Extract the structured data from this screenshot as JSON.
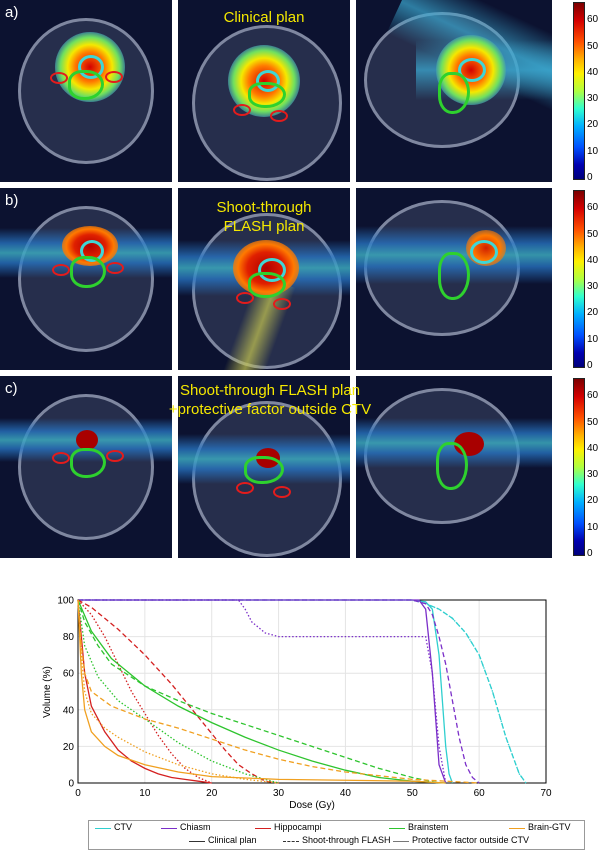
{
  "row_labels": [
    "a)",
    "b)",
    "c)"
  ],
  "panel_titles": {
    "a": "Clinical plan",
    "b_line1": "Shoot-through",
    "b_line2": "FLASH plan",
    "c_line1": "Shoot-through FLASH plan",
    "c_line2": "+protective factor outside CTV"
  },
  "colorbar_ticks": [
    "60",
    "50",
    "40",
    "30",
    "20",
    "10",
    "0"
  ],
  "colors": {
    "ctv": "#2fcfcf",
    "chiasm": "#7b2fc9",
    "hippocampi": "#d42020",
    "brainstem": "#2ec42e",
    "brain_gtv": "#f0a020",
    "dose_overlay_hot": "#cc0000",
    "dose_overlay_cold": "#1a1aa0"
  },
  "chart_data": {
    "type": "line",
    "xlabel": "Dose (Gy)",
    "ylabel": "Volume (%)",
    "xlim": [
      0,
      70
    ],
    "ylim": [
      0,
      100
    ],
    "xticks": [
      0,
      10,
      20,
      30,
      40,
      50,
      60,
      70
    ],
    "yticks": [
      0,
      20,
      40,
      60,
      80,
      100
    ],
    "grid": true,
    "legend_position": "bottom",
    "legend_structures": [
      "CTV",
      "Chiasm",
      "Hippocampi",
      "Brainstem",
      "Brain-GTV"
    ],
    "legend_plans": [
      "Clinical plan",
      "Shoot-through FLASH",
      "Protective factor outside CTV"
    ],
    "series": [
      {
        "name": "CTV",
        "plan": "Clinical plan",
        "color": "#2fcfcf",
        "dash": "solid",
        "x": [
          0,
          50,
          52,
          53,
          54,
          55,
          55.5,
          56
        ],
        "y": [
          100,
          100,
          99,
          95,
          70,
          20,
          5,
          0
        ]
      },
      {
        "name": "CTV",
        "plan": "Shoot-through FLASH",
        "color": "#2fcfcf",
        "dash": "dashed",
        "x": [
          0,
          50,
          52,
          54,
          56,
          58,
          60,
          62,
          64,
          66,
          67
        ],
        "y": [
          100,
          100,
          98,
          95,
          90,
          82,
          70,
          50,
          25,
          5,
          0
        ]
      },
      {
        "name": "CTV",
        "plan": "Protective factor outside CTV",
        "color": "#2fcfcf",
        "dash": "dotted",
        "x": [
          0,
          50,
          52,
          54,
          56,
          58,
          60,
          62,
          64,
          66,
          67
        ],
        "y": [
          100,
          100,
          98,
          95,
          90,
          82,
          70,
          50,
          25,
          5,
          0
        ]
      },
      {
        "name": "Chiasm",
        "plan": "Clinical plan",
        "color": "#7b2fc9",
        "dash": "solid",
        "x": [
          0,
          51,
          52,
          53,
          54,
          55
        ],
        "y": [
          100,
          100,
          95,
          60,
          10,
          0
        ]
      },
      {
        "name": "Chiasm",
        "plan": "Shoot-through FLASH",
        "color": "#7b2fc9",
        "dash": "dashed",
        "x": [
          0,
          50,
          52,
          53,
          54,
          55,
          56,
          57,
          58,
          59,
          60
        ],
        "y": [
          100,
          100,
          98,
          92,
          80,
          65,
          45,
          25,
          10,
          3,
          0
        ]
      },
      {
        "name": "Chiasm",
        "plan": "Protective factor outside CTV",
        "color": "#7b2fc9",
        "dash": "dotted",
        "x": [
          0,
          24,
          25,
          26,
          28,
          30,
          52,
          53,
          54,
          55
        ],
        "y": [
          100,
          100,
          95,
          88,
          82,
          80,
          80,
          60,
          20,
          0
        ]
      },
      {
        "name": "Hippocampi",
        "plan": "Clinical plan",
        "color": "#d42020",
        "dash": "solid",
        "x": [
          0,
          1,
          2,
          4,
          6,
          8,
          10,
          12,
          14,
          16,
          18,
          20
        ],
        "y": [
          100,
          60,
          42,
          28,
          18,
          12,
          8,
          5,
          3,
          2,
          1,
          0
        ]
      },
      {
        "name": "Hippocampi",
        "plan": "Shoot-through FLASH",
        "color": "#d42020",
        "dash": "dashed",
        "x": [
          0,
          2,
          4,
          6,
          8,
          10,
          12,
          14,
          16,
          18,
          20,
          22,
          24,
          26,
          28,
          30
        ],
        "y": [
          100,
          96,
          90,
          84,
          77,
          70,
          62,
          54,
          45,
          36,
          27,
          18,
          10,
          5,
          1,
          0
        ]
      },
      {
        "name": "Hippocampi",
        "plan": "Protective factor outside CTV",
        "color": "#d42020",
        "dash": "dotted",
        "x": [
          0,
          2,
          4,
          6,
          8,
          10,
          12,
          14,
          16,
          18,
          20
        ],
        "y": [
          100,
          92,
          80,
          65,
          50,
          38,
          26,
          16,
          8,
          3,
          0
        ]
      },
      {
        "name": "Brainstem",
        "plan": "Clinical plan",
        "color": "#2ec42e",
        "dash": "solid",
        "x": [
          0,
          2,
          5,
          10,
          15,
          20,
          25,
          30,
          35,
          40,
          45,
          50,
          55
        ],
        "y": [
          100,
          83,
          68,
          53,
          42,
          33,
          25,
          18,
          12,
          7,
          3,
          1,
          0
        ]
      },
      {
        "name": "Brainstem",
        "plan": "Shoot-through FLASH",
        "color": "#2ec42e",
        "dash": "dashed",
        "x": [
          0,
          1,
          3,
          5,
          10,
          15,
          20,
          25,
          30,
          35,
          40,
          45,
          50,
          54
        ],
        "y": [
          100,
          88,
          75,
          65,
          53,
          45,
          38,
          32,
          26,
          20,
          14,
          8,
          3,
          0
        ]
      },
      {
        "name": "Brainstem",
        "plan": "Protective factor outside CTV",
        "color": "#2ec42e",
        "dash": "dotted",
        "x": [
          0,
          1,
          3,
          6,
          10,
          15,
          20,
          25,
          28,
          30
        ],
        "y": [
          100,
          75,
          58,
          45,
          35,
          22,
          12,
          5,
          2,
          0
        ]
      },
      {
        "name": "Brain-GTV",
        "plan": "Clinical plan",
        "color": "#f0a020",
        "dash": "solid",
        "x": [
          0,
          0.5,
          1,
          2,
          4,
          6,
          10,
          15,
          20,
          30,
          40,
          50,
          55
        ],
        "y": [
          100,
          60,
          40,
          28,
          20,
          15,
          10,
          6,
          3.5,
          2,
          1.5,
          1,
          0
        ]
      },
      {
        "name": "Brain-GTV",
        "plan": "Shoot-through FLASH",
        "color": "#f0a020",
        "dash": "dashed",
        "x": [
          0,
          0.5,
          1,
          2,
          5,
          10,
          15,
          20,
          25,
          30,
          35,
          40,
          45,
          50,
          55,
          60
        ],
        "y": [
          100,
          75,
          60,
          50,
          42,
          35,
          30,
          24,
          18,
          13,
          9,
          6,
          4,
          2,
          1,
          0
        ]
      },
      {
        "name": "Brain-GTV",
        "plan": "Protective factor outside CTV",
        "color": "#f0a020",
        "dash": "dotted",
        "x": [
          0,
          0.5,
          1,
          2,
          4,
          6,
          10,
          15,
          20,
          25,
          30
        ],
        "y": [
          100,
          70,
          50,
          38,
          30,
          25,
          17,
          10,
          5,
          2,
          0
        ]
      }
    ]
  }
}
